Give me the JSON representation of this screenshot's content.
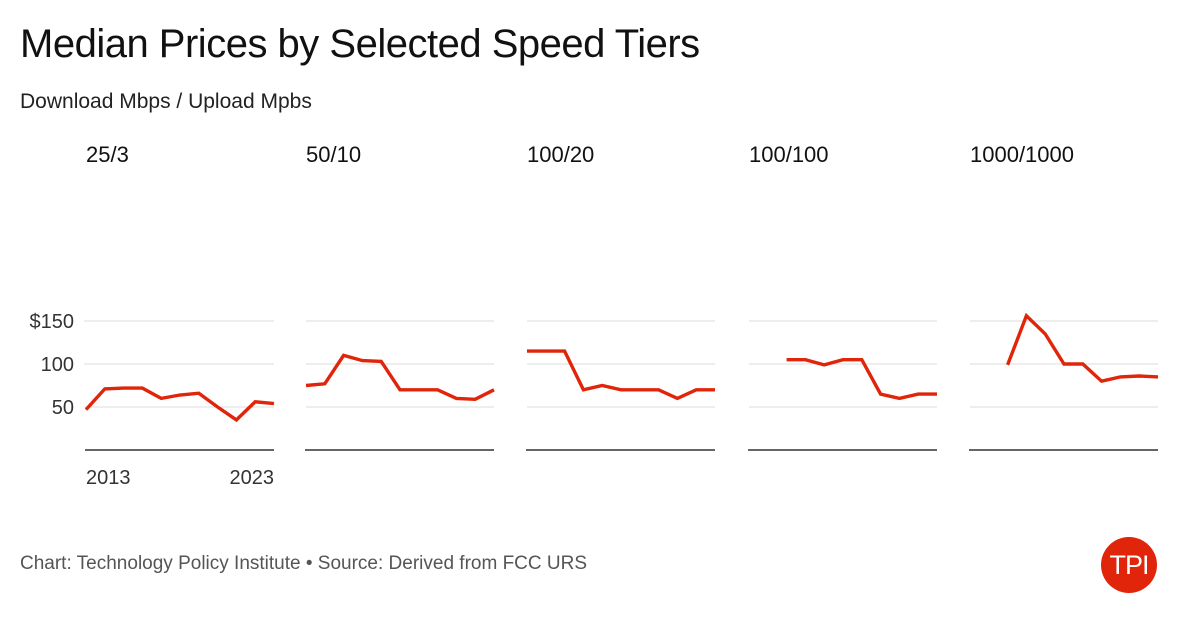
{
  "title": "Median Prices by Selected Speed Tiers",
  "subtitle": "Download Mbps / Upload Mpbs",
  "footer": "Chart: Technology Policy Institute • Source: Derived from FCC URS",
  "logo_text": "TPI",
  "colors": {
    "line": "#e0250a",
    "grid": "#dddddd",
    "baseline": "#333333",
    "logo": "#e0250a"
  },
  "chart_data": {
    "type": "line",
    "layout": "small-multiples",
    "ylim": [
      0,
      150
    ],
    "y_ticks": [
      50,
      100,
      150
    ],
    "y_tick_labels": [
      "50",
      "100",
      "$150"
    ],
    "xlim": [
      2013,
      2023
    ],
    "x_tick_labels": [
      "2013",
      "2023"
    ],
    "x_ticks": [
      2013,
      2023
    ],
    "panels": [
      {
        "name": "25/3",
        "x": [
          2013,
          2014,
          2015,
          2016,
          2017,
          2018,
          2019,
          2020,
          2021,
          2022,
          2023
        ],
        "y": [
          47,
          71,
          72,
          72,
          60,
          64,
          66,
          50,
          35,
          56,
          54
        ]
      },
      {
        "name": "50/10",
        "x": [
          2013,
          2014,
          2015,
          2016,
          2017,
          2018,
          2019,
          2020,
          2021,
          2022,
          2023
        ],
        "y": [
          75,
          77,
          110,
          104,
          103,
          70,
          70,
          70,
          60,
          59,
          70
        ]
      },
      {
        "name": "100/20",
        "x": [
          2013,
          2014,
          2015,
          2016,
          2017,
          2018,
          2019,
          2020,
          2021,
          2022,
          2023
        ],
        "y": [
          115,
          115,
          115,
          70,
          75,
          70,
          70,
          70,
          60,
          70,
          70
        ]
      },
      {
        "name": "100/100",
        "x": [
          2015,
          2016,
          2017,
          2018,
          2019,
          2020,
          2021,
          2022,
          2023
        ],
        "y": [
          105,
          105,
          99,
          105,
          105,
          65,
          60,
          65,
          65
        ]
      },
      {
        "name": "1000/1000",
        "x": [
          2015,
          2016,
          2017,
          2018,
          2019,
          2020,
          2021,
          2022,
          2023
        ],
        "y": [
          99,
          156,
          135,
          100,
          100,
          80,
          85,
          86,
          85
        ]
      }
    ]
  }
}
